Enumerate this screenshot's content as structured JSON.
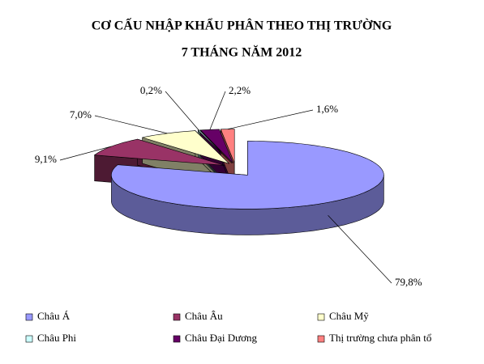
{
  "chart_data": {
    "type": "pie3d",
    "title": "CƠ CẤU NHẬP KHẨU PHÂN THEO THỊ TRƯỜNG",
    "subtitle": "7 THÁNG NĂM 2012",
    "categories": [
      "Châu Á",
      "Châu Âu",
      "Châu Mỹ",
      "Châu Phi",
      "Châu Đại Dương",
      "Thị trường chưa phân tổ"
    ],
    "values": [
      79.8,
      9.1,
      7.0,
      0.2,
      2.2,
      1.6
    ],
    "value_labels": [
      "79,8%",
      "9,1%",
      "7,0%",
      "0,2%",
      "2,2%",
      "1,6%"
    ],
    "colors": [
      "#9999ff",
      "#993366",
      "#ffffcc",
      "#ccffff",
      "#660066",
      "#ff8080"
    ],
    "legend": "bottom"
  }
}
